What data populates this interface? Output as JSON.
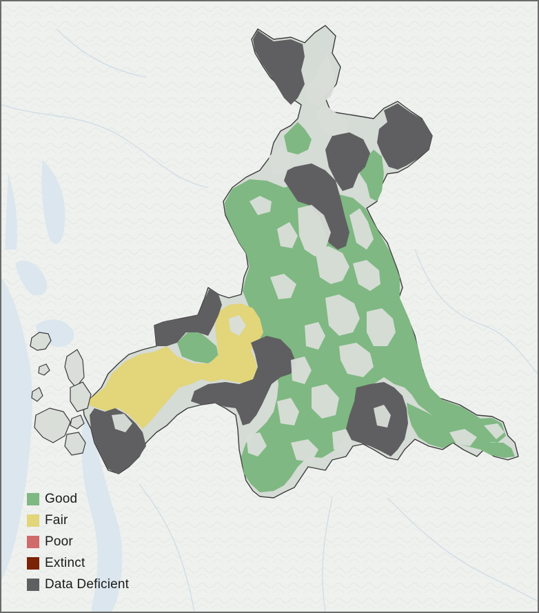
{
  "colors": {
    "background": "#eef1ee",
    "water": "#dbe6ee",
    "terrain_light": "#d9ded9",
    "region_outline": "#3a3a3a"
  },
  "legend": {
    "items": [
      {
        "label": "Good",
        "color": "#7fb882"
      },
      {
        "label": "Fair",
        "color": "#e2d57a"
      },
      {
        "label": "Poor",
        "color": "#cf6b6b"
      },
      {
        "label": "Extinct",
        "color": "#7a2306"
      },
      {
        "label": "Data Deficient",
        "color": "#5f5f61"
      }
    ]
  }
}
